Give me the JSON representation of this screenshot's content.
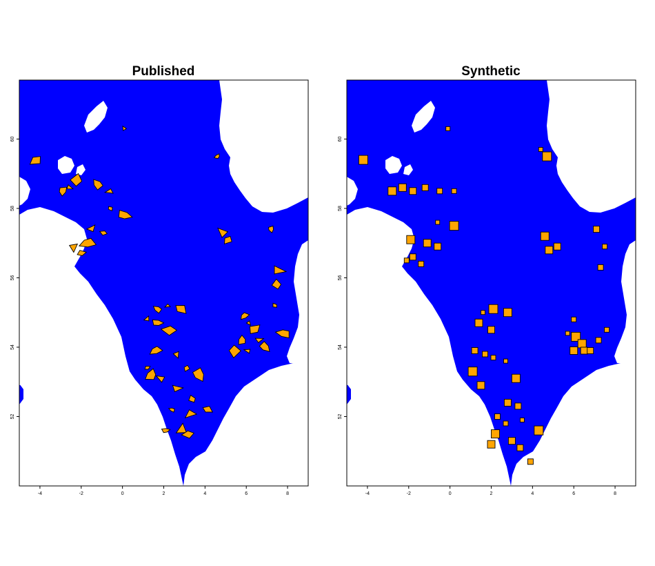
{
  "panels": [
    {
      "title": "Published",
      "shape": "polygon",
      "farms": [
        [
          0.1,
          60.3
        ],
        [
          -4.2,
          59.4
        ],
        [
          -2.9,
          58.5
        ],
        [
          -2.6,
          58.6
        ],
        [
          -2.2,
          58.8
        ],
        [
          -1.2,
          58.7
        ],
        [
          -0.6,
          58.5
        ],
        [
          -0.6,
          58.0
        ],
        [
          0.1,
          57.8
        ],
        [
          -1.5,
          57.4
        ],
        [
          -0.9,
          57.3
        ],
        [
          -1.7,
          57.0
        ],
        [
          -2.4,
          56.9
        ],
        [
          -2.0,
          56.7
        ],
        [
          4.6,
          59.5
        ],
        [
          4.9,
          57.3
        ],
        [
          5.1,
          57.1
        ],
        [
          7.2,
          57.4
        ],
        [
          7.5,
          56.2
        ],
        [
          7.5,
          55.8
        ],
        [
          1.7,
          55.1
        ],
        [
          2.2,
          55.2
        ],
        [
          2.8,
          55.1
        ],
        [
          1.7,
          54.7
        ],
        [
          1.2,
          54.8
        ],
        [
          2.3,
          54.5
        ],
        [
          1.6,
          53.9
        ],
        [
          2.6,
          53.8
        ],
        [
          1.2,
          53.4
        ],
        [
          1.4,
          53.2
        ],
        [
          1.9,
          53.1
        ],
        [
          3.1,
          53.4
        ],
        [
          3.7,
          53.2
        ],
        [
          2.6,
          52.8
        ],
        [
          3.4,
          52.5
        ],
        [
          2.4,
          52.2
        ],
        [
          3.3,
          52.1
        ],
        [
          4.1,
          52.2
        ],
        [
          2.1,
          51.6
        ],
        [
          2.9,
          51.6
        ],
        [
          3.2,
          51.5
        ],
        [
          5.9,
          54.9
        ],
        [
          6.1,
          54.7
        ],
        [
          6.4,
          54.5
        ],
        [
          5.8,
          54.2
        ],
        [
          6.1,
          53.9
        ],
        [
          5.4,
          53.9
        ],
        [
          6.9,
          54.0
        ],
        [
          6.6,
          54.2
        ],
        [
          7.4,
          55.2
        ],
        [
          7.8,
          54.4
        ]
      ]
    },
    {
      "title": "Synthetic",
      "shape": "square",
      "farms": [
        [
          -0.1,
          60.3
        ],
        [
          -4.2,
          59.4
        ],
        [
          -2.8,
          58.5
        ],
        [
          -2.3,
          58.6
        ],
        [
          -1.8,
          58.5
        ],
        [
          -1.2,
          58.6
        ],
        [
          -0.5,
          58.5
        ],
        [
          0.2,
          58.5
        ],
        [
          -0.6,
          57.6
        ],
        [
          0.2,
          57.5
        ],
        [
          -1.9,
          57.1
        ],
        [
          -1.1,
          57.0
        ],
        [
          -0.6,
          56.9
        ],
        [
          -1.8,
          56.6
        ],
        [
          -1.4,
          56.4
        ],
        [
          -2.1,
          56.5
        ],
        [
          4.4,
          59.7
        ],
        [
          4.7,
          59.5
        ],
        [
          4.6,
          57.2
        ],
        [
          4.8,
          56.8
        ],
        [
          5.2,
          56.9
        ],
        [
          7.1,
          57.4
        ],
        [
          7.3,
          56.3
        ],
        [
          7.5,
          56.9
        ],
        [
          1.6,
          55.0
        ],
        [
          2.1,
          55.1
        ],
        [
          2.8,
          55.0
        ],
        [
          1.4,
          54.7
        ],
        [
          2.0,
          54.5
        ],
        [
          1.2,
          53.9
        ],
        [
          1.7,
          53.8
        ],
        [
          2.1,
          53.7
        ],
        [
          2.7,
          53.6
        ],
        [
          1.1,
          53.3
        ],
        [
          3.2,
          53.1
        ],
        [
          1.5,
          52.9
        ],
        [
          2.8,
          52.4
        ],
        [
          3.3,
          52.3
        ],
        [
          2.3,
          52.0
        ],
        [
          2.7,
          51.8
        ],
        [
          3.5,
          51.9
        ],
        [
          4.3,
          51.6
        ],
        [
          2.2,
          51.5
        ],
        [
          2.0,
          51.2
        ],
        [
          3.0,
          51.3
        ],
        [
          3.4,
          51.1
        ],
        [
          3.9,
          50.7
        ],
        [
          6.0,
          54.8
        ],
        [
          5.7,
          54.4
        ],
        [
          6.1,
          54.3
        ],
        [
          6.4,
          54.1
        ],
        [
          6.0,
          53.9
        ],
        [
          6.5,
          53.9
        ],
        [
          6.8,
          53.9
        ],
        [
          7.2,
          54.2
        ],
        [
          7.6,
          54.5
        ]
      ]
    }
  ],
  "x_ticks": [
    "-4",
    "-2",
    "0",
    "2",
    "4",
    "6",
    "8"
  ],
  "y_ticks": [
    "52",
    "54",
    "56",
    "58",
    "60"
  ],
  "colors": {
    "sea": "#0000ff",
    "land": "#ffffff",
    "farm": "#ffa500"
  }
}
